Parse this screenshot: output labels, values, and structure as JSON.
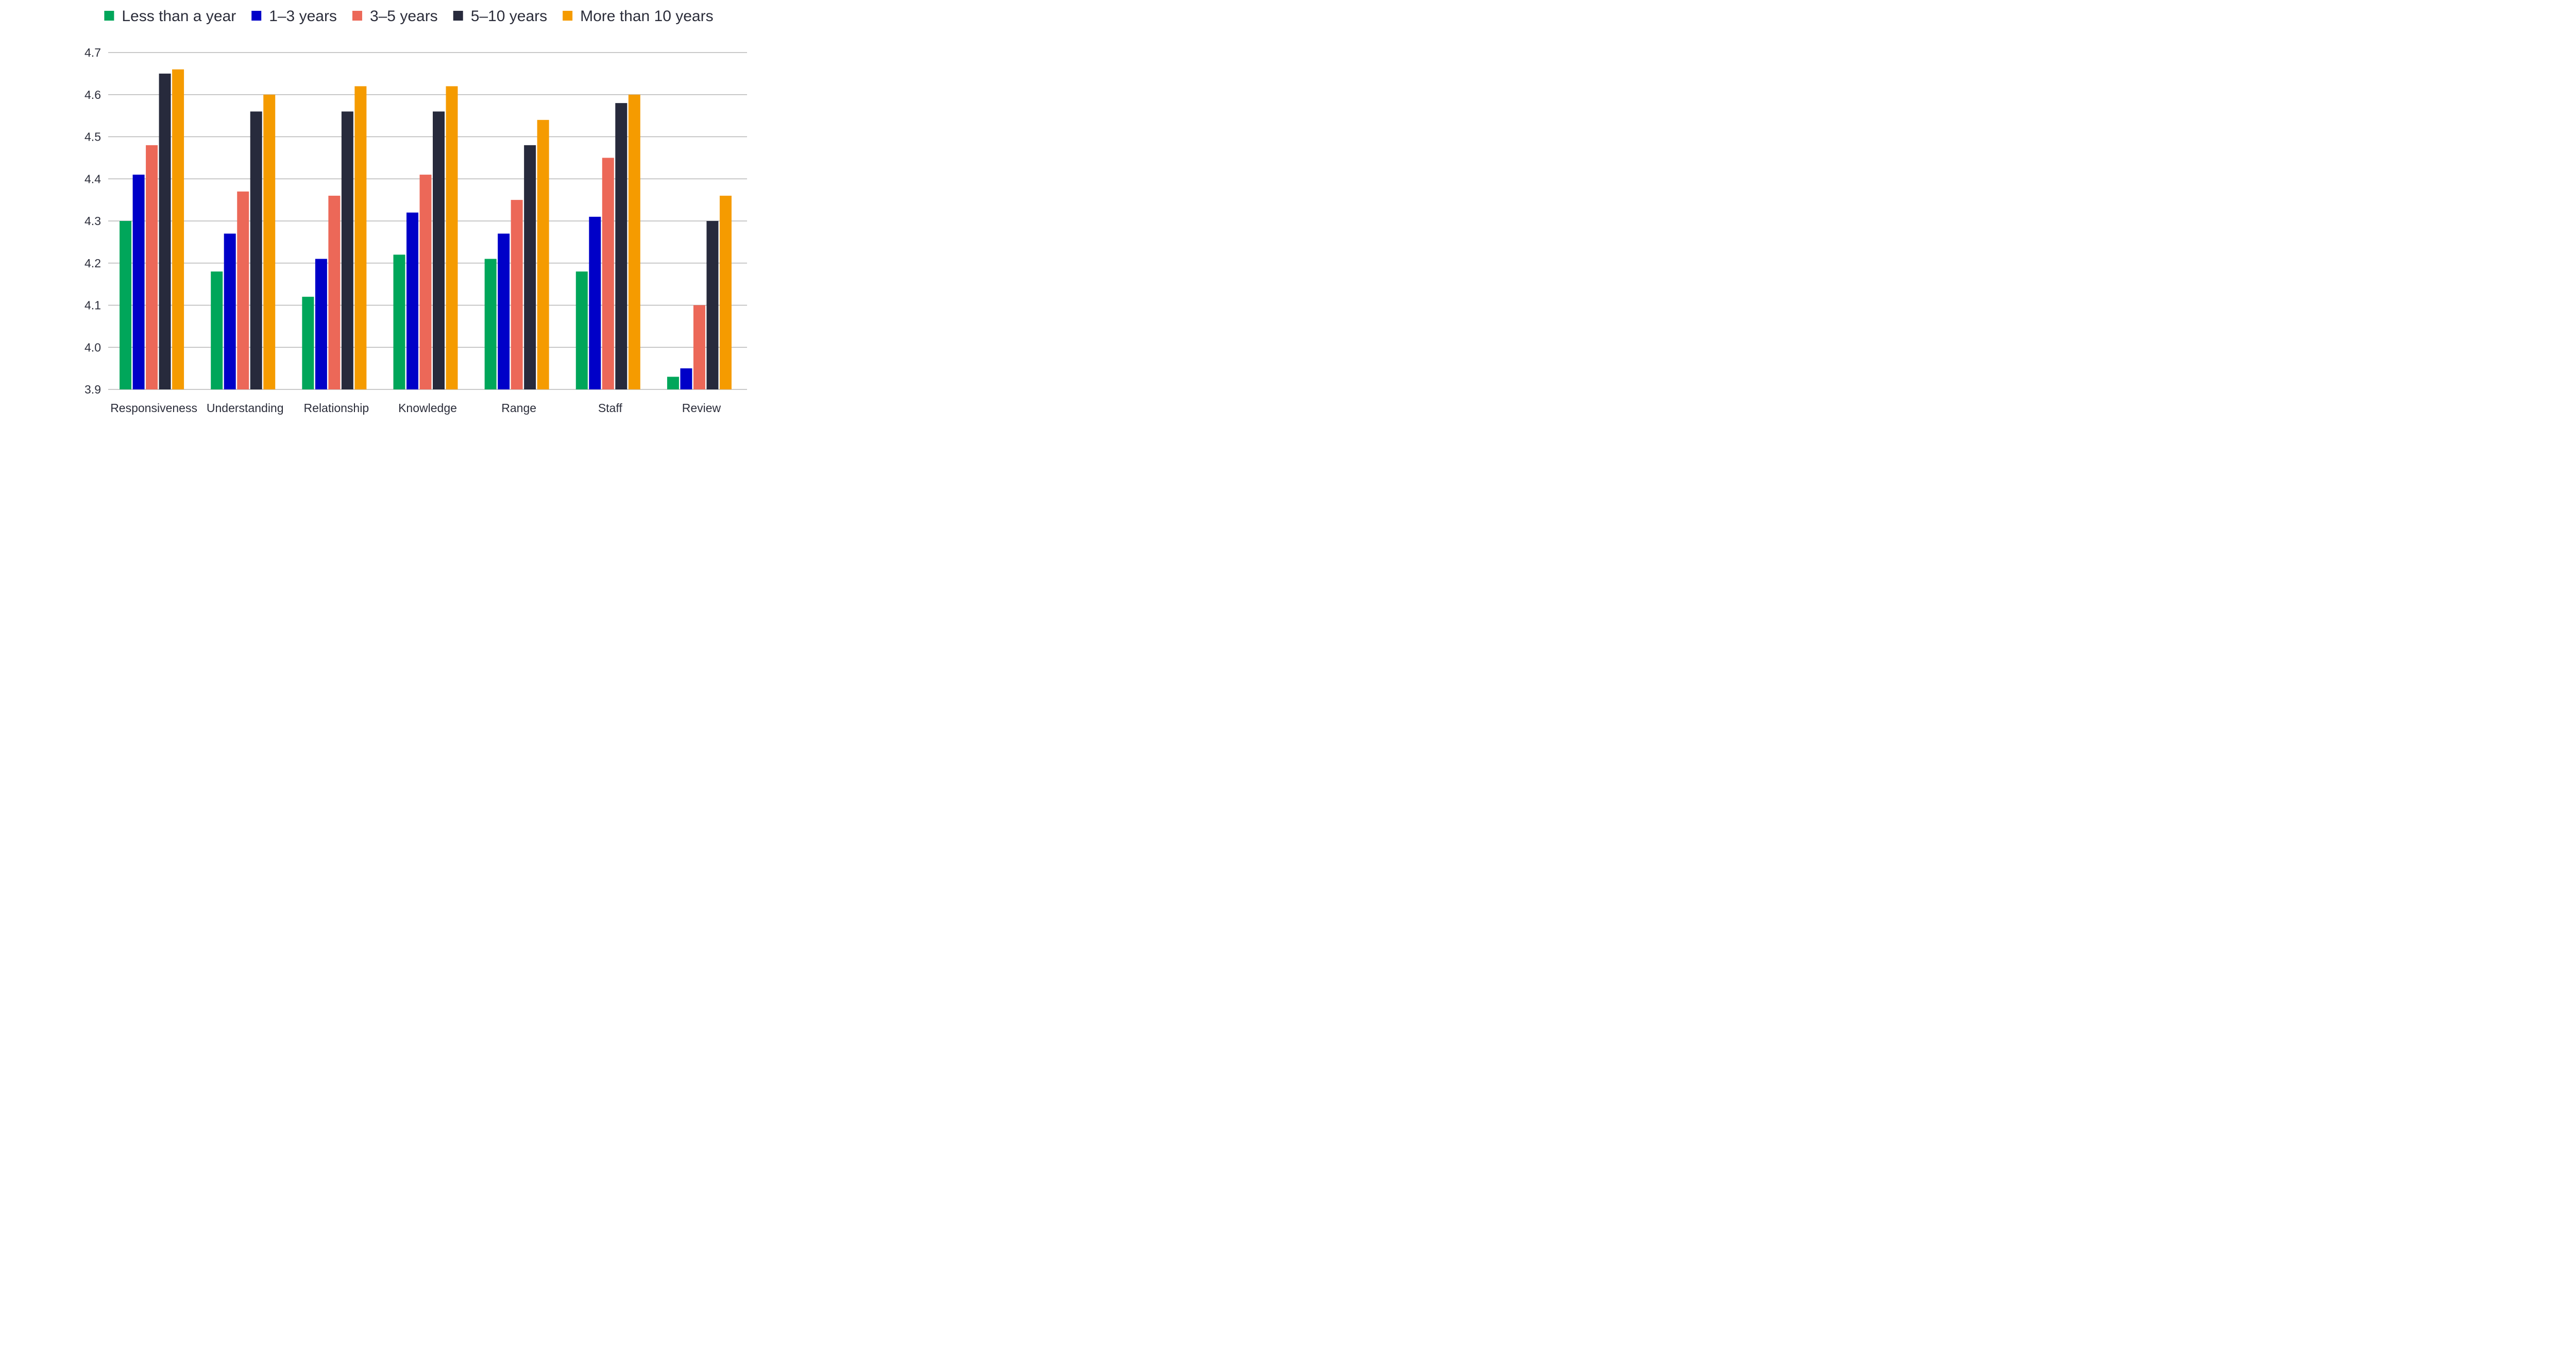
{
  "chart_data": {
    "type": "bar",
    "title": "",
    "xlabel": "",
    "ylabel": "",
    "ylim": [
      3.9,
      4.7
    ],
    "yticks": [
      "3.9",
      "4.0",
      "4.1",
      "4.2",
      "4.3",
      "4.4",
      "4.5",
      "4.6",
      "4.7"
    ],
    "grid": true,
    "legend_position": "top-center",
    "categories": [
      "Responsiveness",
      "Understanding",
      "Relationship",
      "Knowledge",
      "Range",
      "Staff",
      "Review"
    ],
    "series": [
      {
        "name": "Less than a year",
        "color": "#00a65a",
        "values": [
          4.3,
          4.18,
          4.12,
          4.22,
          4.21,
          4.18,
          3.93
        ]
      },
      {
        "name": "1–3 years",
        "color": "#0000c8",
        "values": [
          4.41,
          4.27,
          4.21,
          4.32,
          4.27,
          4.31,
          3.95
        ]
      },
      {
        "name": "3–5 years",
        "color": "#ec6858",
        "values": [
          4.48,
          4.37,
          4.36,
          4.41,
          4.35,
          4.45,
          4.1
        ]
      },
      {
        "name": "5–10 years",
        "color": "#272a3c",
        "values": [
          4.65,
          4.56,
          4.56,
          4.56,
          4.48,
          4.58,
          4.3
        ]
      },
      {
        "name": "More than 10 years",
        "color": "#f59b00",
        "values": [
          4.66,
          4.6,
          4.62,
          4.62,
          4.54,
          4.6,
          4.36
        ]
      }
    ]
  }
}
